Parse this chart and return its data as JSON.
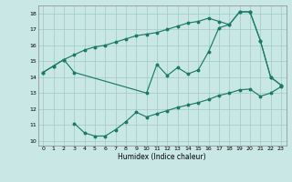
{
  "xlabel": "Humidex (Indice chaleur)",
  "xlim": [
    -0.5,
    23.5
  ],
  "ylim": [
    9.7,
    18.5
  ],
  "yticks": [
    10,
    11,
    12,
    13,
    14,
    15,
    16,
    17,
    18
  ],
  "xticks": [
    0,
    1,
    2,
    3,
    4,
    5,
    6,
    7,
    8,
    9,
    10,
    11,
    12,
    13,
    14,
    15,
    16,
    17,
    18,
    19,
    20,
    21,
    22,
    23
  ],
  "bg_color": "#c9e8e5",
  "line_color": "#1a7a6a",
  "grid_color": "#a0c8c4",
  "series1_x": [
    0,
    1,
    2,
    3,
    4,
    5,
    6,
    7,
    8,
    9,
    10,
    11,
    12,
    13,
    14,
    15,
    16,
    17,
    18,
    19,
    20,
    21,
    22,
    23
  ],
  "series1_y": [
    14.3,
    14.7,
    15.1,
    15.4,
    15.7,
    15.9,
    16.0,
    16.2,
    16.4,
    16.6,
    16.7,
    16.8,
    17.0,
    17.2,
    17.4,
    17.5,
    17.7,
    17.5,
    17.3,
    18.1,
    18.1,
    16.3,
    14.0,
    13.5
  ],
  "series2_x": [
    0,
    1,
    2,
    3,
    10,
    11,
    12,
    13,
    14,
    15,
    16,
    17,
    18,
    19,
    20,
    21,
    22,
    23
  ],
  "series2_y": [
    14.3,
    14.7,
    15.1,
    14.3,
    13.0,
    14.8,
    14.1,
    14.6,
    14.2,
    14.45,
    15.6,
    17.1,
    17.3,
    18.1,
    18.1,
    16.3,
    14.0,
    13.5
  ],
  "series3_x": [
    3,
    4,
    5,
    6,
    7,
    8,
    9,
    10,
    11,
    12,
    13,
    14,
    15,
    16,
    17,
    18,
    19,
    20,
    21,
    22,
    23
  ],
  "series3_y": [
    11.1,
    10.5,
    10.3,
    10.3,
    10.7,
    11.2,
    11.8,
    11.5,
    11.7,
    11.9,
    12.1,
    12.25,
    12.4,
    12.6,
    12.85,
    13.0,
    13.2,
    13.25,
    12.8,
    13.0,
    13.4
  ]
}
